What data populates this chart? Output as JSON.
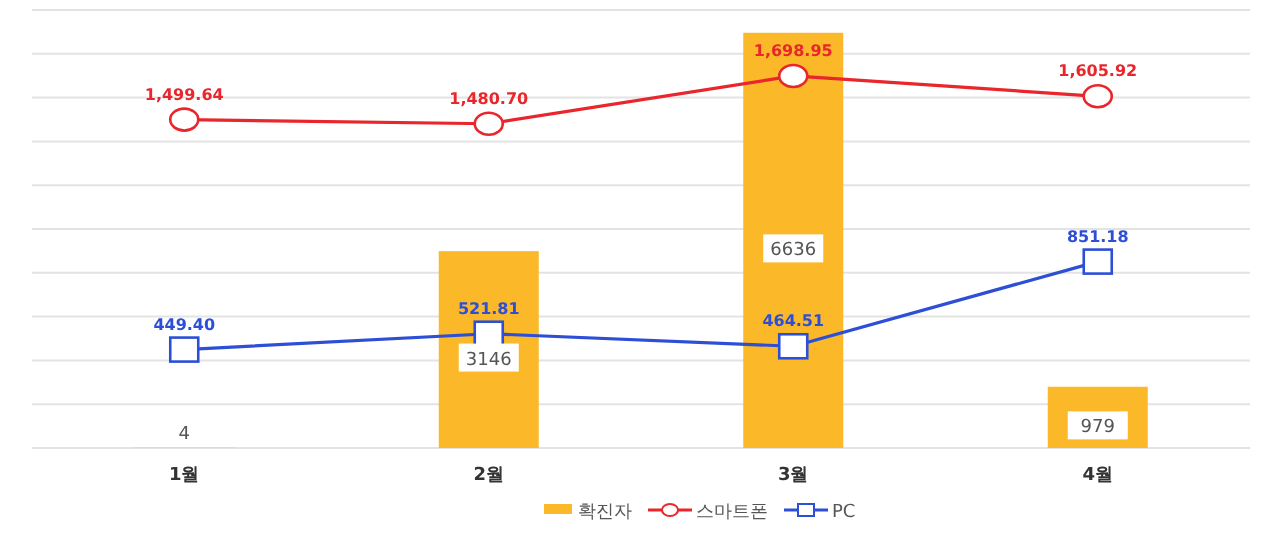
{
  "chart_data": {
    "type": "bar",
    "categories": [
      "1월",
      "2월",
      "3월",
      "4월"
    ],
    "series": [
      {
        "name": "확진자",
        "color": "#fbb829",
        "values": [
          4,
          3146,
          6636,
          979
        ]
      },
      {
        "name": "스마트폰",
        "type": "line",
        "axis": "y2",
        "marker": "circle",
        "color": "#e8262b",
        "values": [
          1499.64,
          1480.7,
          1698.95,
          1605.92
        ],
        "value_labels": [
          "1,499.64",
          "1,480.70",
          "1,698.95",
          "1,605.92"
        ]
      },
      {
        "name": "PC",
        "type": "line",
        "axis": "y2",
        "marker": "square",
        "color": "#2c4fd6",
        "values": [
          449.4,
          521.81,
          464.51,
          851.18
        ],
        "value_labels": [
          "449.40",
          "521.81",
          "464.51",
          "851.18"
        ]
      }
    ],
    "ylim": [
      0,
      7000
    ],
    "yticks": [
      {
        "value": 0,
        "label": null
      },
      {
        "value": 700,
        "label": null
      },
      {
        "value": 1400,
        "label": null
      },
      {
        "value": 2100,
        "label": null
      },
      {
        "value": 2800,
        "label": null
      },
      {
        "value": 3500,
        "label": null
      },
      {
        "value": 4200,
        "label": null
      },
      {
        "value": 4900,
        "label": null
      },
      {
        "value": 5600,
        "label": null
      },
      {
        "value": 6300,
        "label": null
      },
      {
        "value": 7000,
        "label": null
      }
    ],
    "y2lim": [
      0,
      2000
    ],
    "tick_labels": "x",
    "grid": "y",
    "data_labels": true,
    "line_style": "solid",
    "legend": "bottom"
  }
}
